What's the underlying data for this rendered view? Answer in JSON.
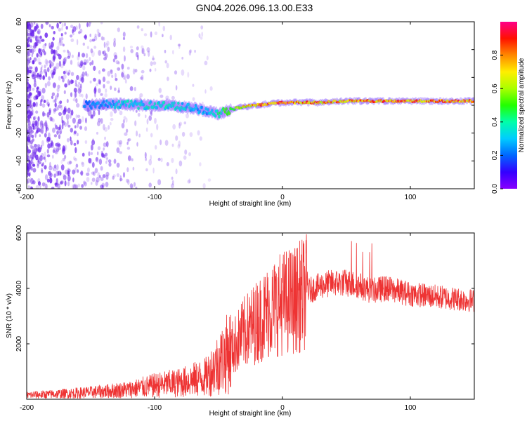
{
  "figure_title": "GN04.2026.096.13.00.E33",
  "colors": {
    "snr_line": "#ee3333",
    "scatter": "#7733ee",
    "colorbar": [
      "#8800ff",
      "#3300ff",
      "#0088ff",
      "#00ffff",
      "#00ff66",
      "#88ff00",
      "#ffff00",
      "#ff8800",
      "#ff0000",
      "#ff0088"
    ]
  },
  "chart_data": [
    {
      "type": "heatmap",
      "name": "spectrogram",
      "xlabel": "Height of straight line (km)",
      "ylabel": "Frequency (Hz)",
      "xlim": [
        -200,
        150
      ],
      "ylim": [
        -60,
        60
      ],
      "x_ticks": [
        -200,
        -100,
        0,
        100
      ],
      "y_ticks": [
        -60,
        -40,
        -20,
        0,
        20,
        40,
        60
      ],
      "colorbar": {
        "label": "Normalized spectral amplitude",
        "range": [
          0,
          1
        ],
        "ticks": [
          "0.0",
          "0.2",
          "0.4",
          "0.6",
          "0.8"
        ]
      },
      "ridge": {
        "description_points_x": [
          -150,
          -130,
          -110,
          -90,
          -70,
          -60,
          -50,
          -40,
          -30,
          -20,
          -10,
          0,
          10,
          30,
          50,
          70,
          90,
          110,
          130,
          150
        ],
        "center_freq": [
          0,
          1,
          0,
          0,
          -2,
          -4,
          -6,
          -3,
          -1,
          0,
          1,
          2,
          2,
          2,
          3,
          3,
          3,
          3,
          3,
          3
        ],
        "amplitude": [
          0.25,
          0.35,
          0.4,
          0.4,
          0.35,
          0.3,
          0.45,
          0.6,
          0.75,
          0.85,
          0.9,
          0.95,
          0.9,
          0.85,
          0.85,
          0.9,
          0.9,
          0.9,
          0.9,
          0.9
        ]
      }
    },
    {
      "type": "line",
      "name": "snr",
      "xlabel": "Height of straight line (km)",
      "ylabel": "SNR (10 * v/v)",
      "xlim": [
        -200,
        150
      ],
      "ylim": [
        0,
        6000
      ],
      "x_ticks": [
        -200,
        -100,
        0,
        100
      ],
      "y_ticks": [
        2000,
        4000,
        6000
      ],
      "envelope_x": [
        -200,
        -180,
        -150,
        -120,
        -100,
        -80,
        -60,
        -50,
        -40,
        -30,
        -20,
        -10,
        0,
        10,
        20,
        30,
        40,
        50,
        60,
        70,
        80,
        90,
        100,
        120,
        150
      ],
      "envelope_y": [
        150,
        180,
        250,
        350,
        500,
        600,
        800,
        1300,
        1800,
        2400,
        2800,
        3200,
        3500,
        3600,
        3900,
        4100,
        4200,
        4200,
        4100,
        3900,
        4000,
        3900,
        3800,
        3700,
        3550
      ]
    }
  ]
}
